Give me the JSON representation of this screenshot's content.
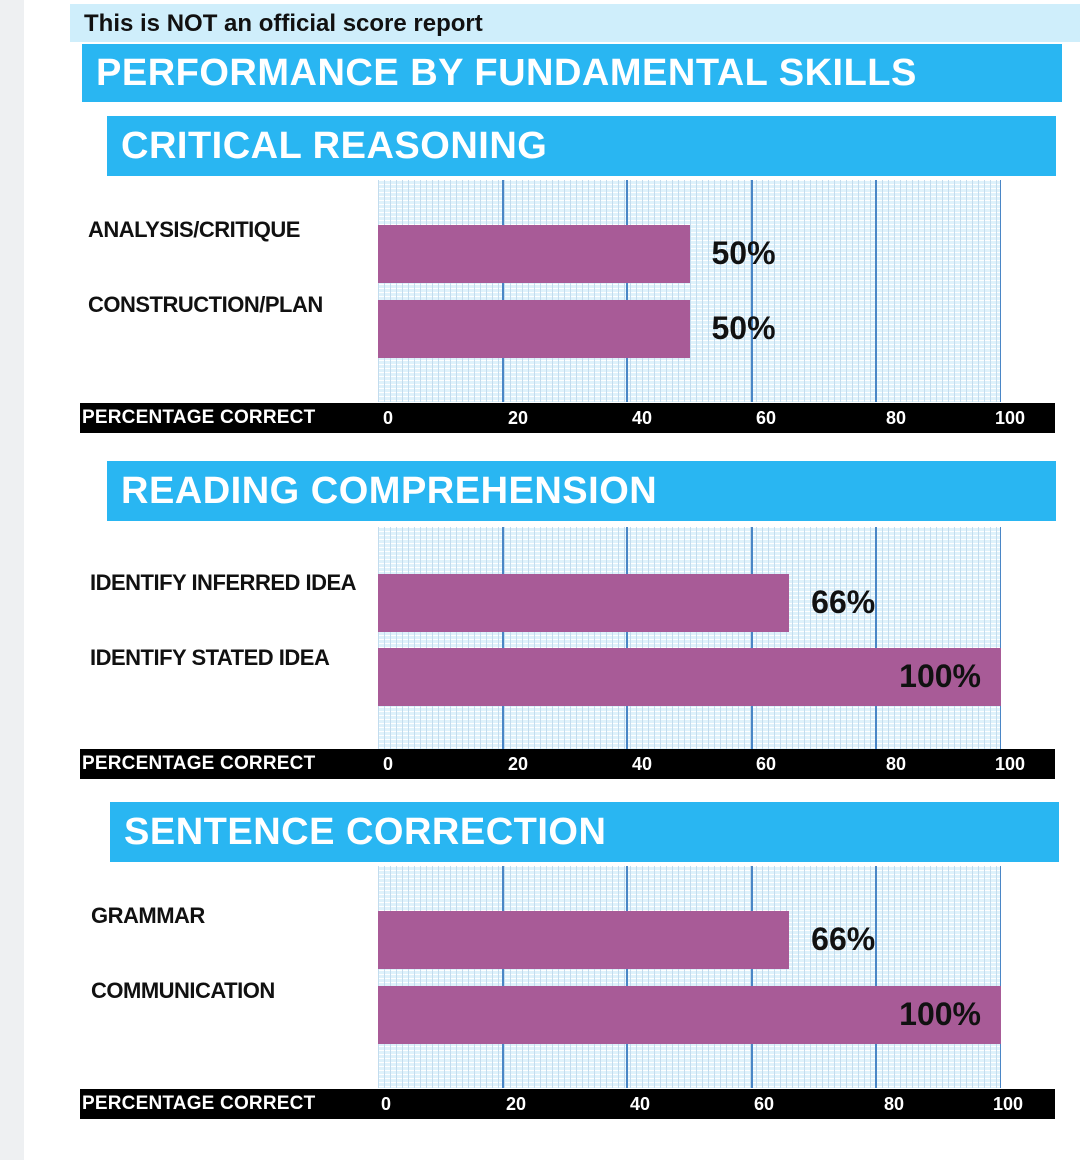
{
  "notice": "This is NOT an official score report",
  "title": "PERFORMANCE BY FUNDAMENTAL SKILLS",
  "colors": {
    "header_bg": "#29b6f2",
    "notice_bg": "#cfeefb",
    "bar": "#a85b97",
    "gridline": "#4a86c6",
    "plot_bg": "#dff2fb"
  },
  "chart_data": [
    {
      "type": "bar",
      "orientation": "horizontal",
      "title": "CRITICAL REASONING",
      "categories": [
        "ANALYSIS/CRITIQUE",
        "CONSTRUCTION/PLAN"
      ],
      "values": [
        50,
        50
      ],
      "value_labels": [
        "50%",
        "50%"
      ],
      "xlabel": "PERCENTAGE CORRECT",
      "xticks": [
        "0",
        "20",
        "40",
        "60",
        "80",
        "100"
      ],
      "xlim": [
        0,
        100
      ],
      "grid": true
    },
    {
      "type": "bar",
      "orientation": "horizontal",
      "title": "READING COMPREHENSION",
      "categories": [
        "IDENTIFY INFERRED IDEA",
        "IDENTIFY STATED IDEA"
      ],
      "values": [
        66,
        100
      ],
      "value_labels": [
        "66%",
        "100%"
      ],
      "xlabel": "PERCENTAGE CORRECT",
      "xticks": [
        "0",
        "20",
        "40",
        "60",
        "80",
        "100"
      ],
      "xlim": [
        0,
        100
      ],
      "grid": true
    },
    {
      "type": "bar",
      "orientation": "horizontal",
      "title": "SENTENCE CORRECTION",
      "categories": [
        "GRAMMAR",
        "COMMUNICATION"
      ],
      "values": [
        66,
        100
      ],
      "value_labels": [
        "66%",
        "100%"
      ],
      "xlabel": "PERCENTAGE CORRECT",
      "xticks": [
        "0",
        "20",
        "40",
        "60",
        "80",
        "100"
      ],
      "xlim": [
        0,
        100
      ],
      "grid": true
    }
  ]
}
